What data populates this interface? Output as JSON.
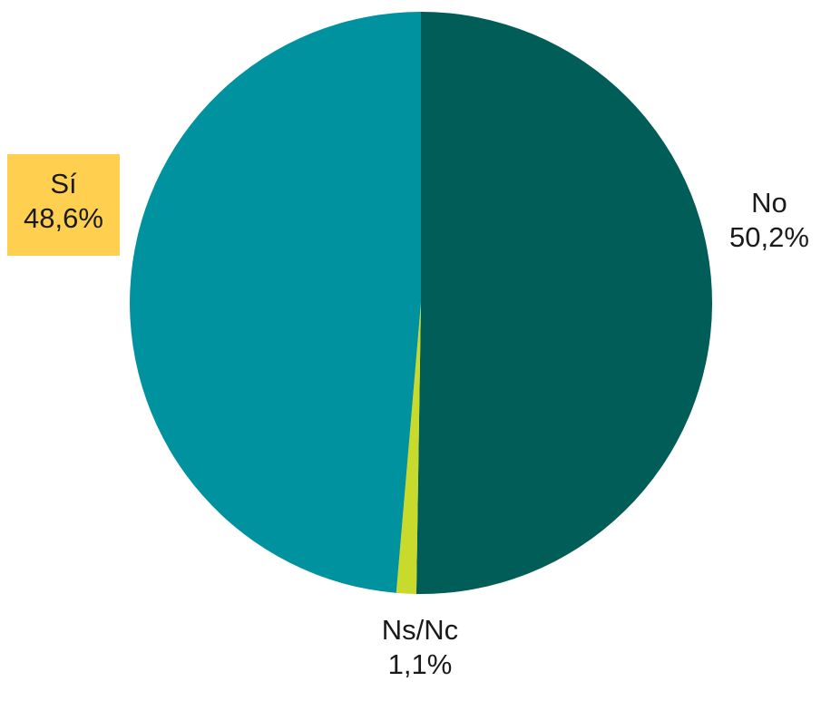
{
  "chart_data": {
    "type": "pie",
    "slices": [
      {
        "name": "No",
        "value": 50.2,
        "label": "50,2%",
        "color": "#005d58"
      },
      {
        "name": "Ns/Nc",
        "value": 1.1,
        "label": "1,1%",
        "color": "#c8da2b"
      },
      {
        "name": "Sí",
        "value": 48.6,
        "label": "48,6%",
        "color": "#00929f",
        "label_background": "#ffd04f"
      }
    ],
    "start_angle_deg": 0,
    "direction": "clockwise",
    "legend": "none (labels beside slices)"
  }
}
